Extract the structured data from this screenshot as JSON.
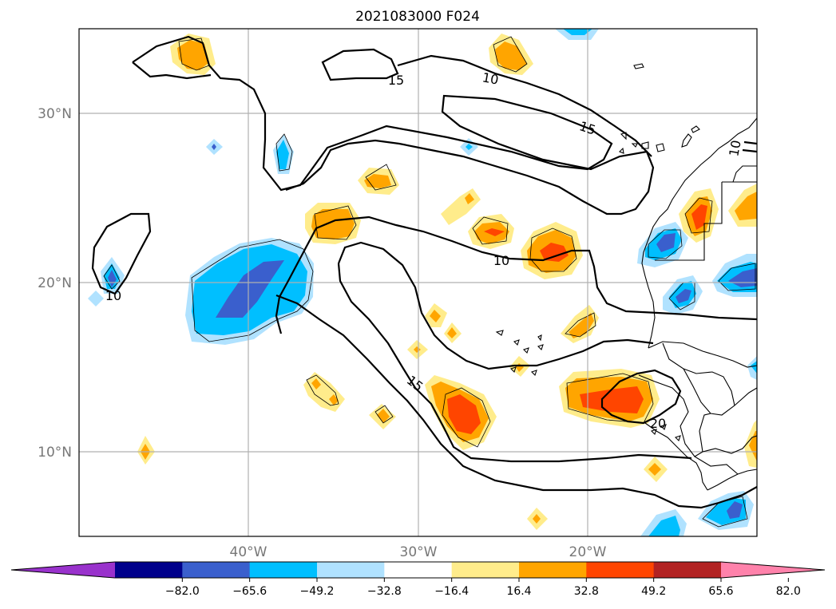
{
  "title": "2021083000 F024",
  "axes": {
    "lat_ticks": [
      "30°N",
      "20°N",
      "10°N"
    ],
    "lon_ticks": [
      "40°W",
      "30°W",
      "20°W"
    ]
  },
  "contour_labels": [
    "15",
    "10",
    "15",
    "10",
    "15",
    "10",
    "10",
    "20"
  ],
  "colorbar": {
    "labels": [
      "−82.0",
      "−65.6",
      "−49.2",
      "−32.8",
      "−16.4",
      "16.4",
      "32.8",
      "49.2",
      "65.6",
      "82.0"
    ],
    "colors": [
      "#9932cc",
      "#00008b",
      "#3a5fcd",
      "#00bfff",
      "#b0e2ff",
      "#ffffff",
      "#ffec8b",
      "#ffa500",
      "#ff4500",
      "#b22222",
      "#ff82ab"
    ]
  },
  "colors": {
    "light_blue": "#b0e2ff",
    "cyan": "#00bfff",
    "blue": "#3a5fcd",
    "yellow": "#ffec8b",
    "orange": "#ffa500",
    "red": "#ff4500",
    "gridline": "#b0b0b0"
  }
}
